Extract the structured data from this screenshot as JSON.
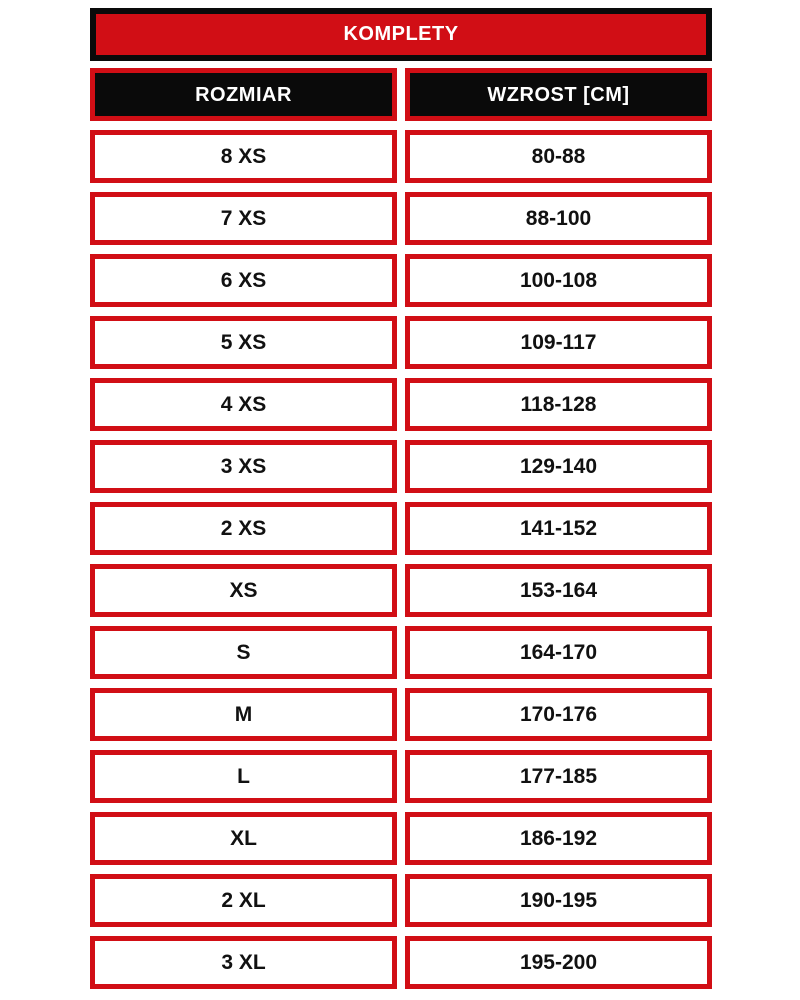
{
  "colors": {
    "red": "#d10e15",
    "black": "#0a0a0a",
    "white": "#ffffff",
    "cell_text": "#111111"
  },
  "chart_data": {
    "type": "table",
    "title": "KOMPLETY",
    "columns": [
      "ROZMIAR",
      "WZROST [CM]"
    ],
    "rows": [
      [
        "8 XS",
        "80-88"
      ],
      [
        "7 XS",
        "88-100"
      ],
      [
        "6 XS",
        "100-108"
      ],
      [
        "5 XS",
        "109-117"
      ],
      [
        "4 XS",
        "118-128"
      ],
      [
        "3 XS",
        "129-140"
      ],
      [
        "2 XS",
        "141-152"
      ],
      [
        "XS",
        "153-164"
      ],
      [
        "S",
        "164-170"
      ],
      [
        "M",
        "170-176"
      ],
      [
        "L",
        "177-185"
      ],
      [
        "XL",
        "186-192"
      ],
      [
        "2 XL",
        "190-195"
      ],
      [
        "3 XL",
        "195-200"
      ]
    ]
  }
}
